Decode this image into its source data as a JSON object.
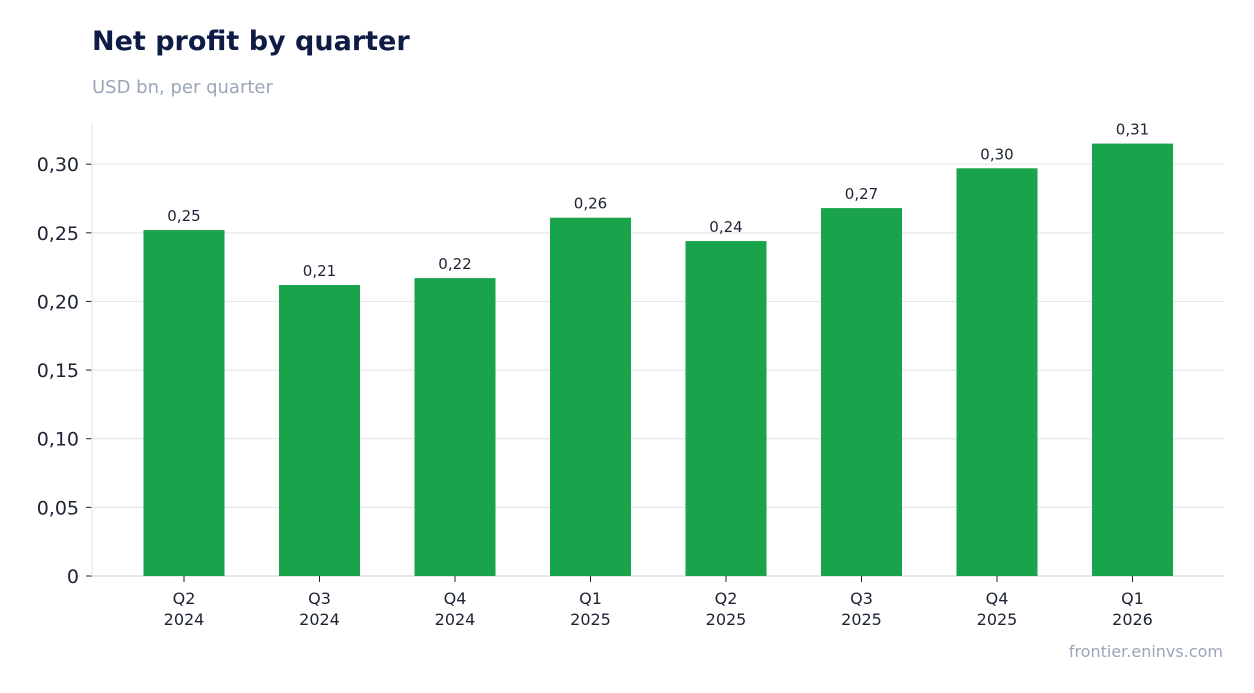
{
  "chart_data": {
    "type": "bar",
    "title": "Net profit by quarter",
    "subtitle": "USD bn, per quarter",
    "categories": [
      [
        "Q2",
        "2024"
      ],
      [
        "Q3",
        "2024"
      ],
      [
        "Q4",
        "2024"
      ],
      [
        "Q1",
        "2025"
      ],
      [
        "Q2",
        "2025"
      ],
      [
        "Q3",
        "2025"
      ],
      [
        "Q4",
        "2025"
      ],
      [
        "Q1",
        "2026"
      ]
    ],
    "values": [
      0.252,
      0.212,
      0.217,
      0.261,
      0.244,
      0.268,
      0.297,
      0.315
    ],
    "data_labels": [
      "0,25",
      "0,21",
      "0,22",
      "0,26",
      "0,24",
      "0,27",
      "0,30",
      "0,31"
    ],
    "y_ticks": [
      0,
      0.05,
      0.1,
      0.15,
      0.2,
      0.25,
      0.3
    ],
    "y_tick_labels": [
      "0",
      "0,05",
      "0,10",
      "0,15",
      "0,20",
      "0,25",
      "0,30"
    ],
    "ylim": [
      0,
      0.33
    ],
    "grid": true,
    "bar_color": "#19a34a"
  },
  "source": "frontier.eninvs.com"
}
